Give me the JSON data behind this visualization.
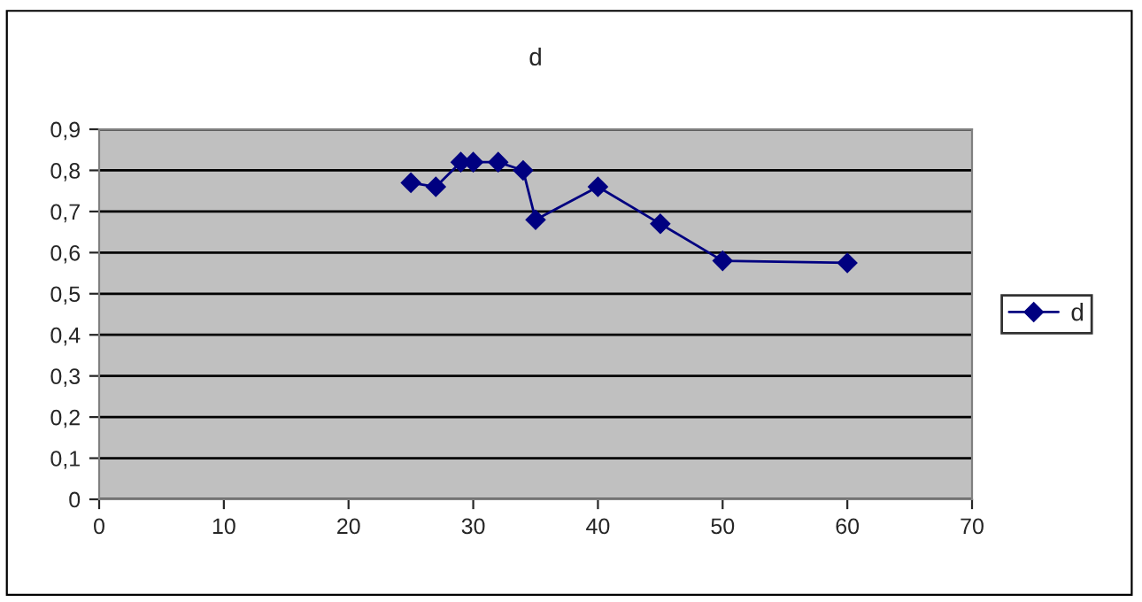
{
  "chart_data": {
    "type": "line",
    "title": "d",
    "x": [
      25,
      27,
      29,
      30,
      32,
      34,
      35,
      40,
      45,
      50,
      60
    ],
    "series": [
      {
        "name": "d",
        "color": "#000080",
        "values": [
          0.77,
          0.76,
          0.82,
          0.82,
          0.82,
          0.8,
          0.68,
          0.76,
          0.67,
          0.58,
          0.575
        ]
      }
    ],
    "xlim": [
      0,
      70
    ],
    "xticks": [
      0,
      10,
      20,
      30,
      40,
      50,
      60,
      70
    ],
    "ylim": [
      0,
      0.9
    ],
    "yticks": [
      {
        "value": 0,
        "label": "0"
      },
      {
        "value": 0.1,
        "label": "0,1"
      },
      {
        "value": 0.2,
        "label": "0,2"
      },
      {
        "value": 0.3,
        "label": "0,3"
      },
      {
        "value": 0.4,
        "label": "0,4"
      },
      {
        "value": 0.5,
        "label": "0,5"
      },
      {
        "value": 0.6,
        "label": "0,6"
      },
      {
        "value": 0.7,
        "label": "0,7"
      },
      {
        "value": 0.8,
        "label": "0,8"
      },
      {
        "value": 0.9,
        "label": "0,9"
      }
    ],
    "grid": "y",
    "legend": "right",
    "marker": "diamond",
    "line_style": "solid"
  }
}
